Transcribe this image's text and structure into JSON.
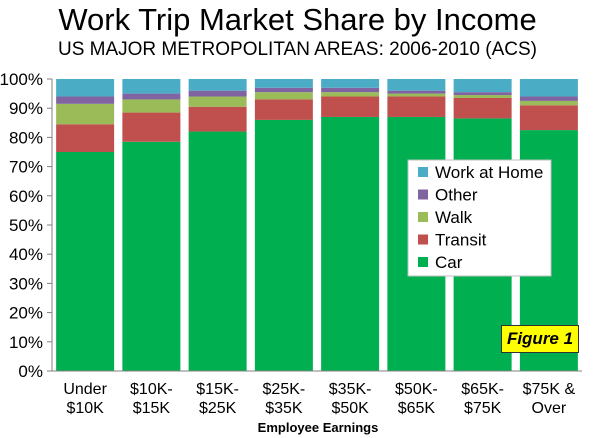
{
  "chart_data": {
    "type": "bar",
    "stacked": true,
    "title": "Work Trip Market Share by Income",
    "subtitle": "US MAJOR METROPOLITAN AREAS: 2006-2010 (ACS)",
    "xlabel": "Employee Earnings",
    "ylabel": "",
    "ylim": [
      0,
      100
    ],
    "yticks": [
      "0%",
      "10%",
      "20%",
      "30%",
      "40%",
      "50%",
      "60%",
      "70%",
      "80%",
      "90%",
      "100%"
    ],
    "categories": [
      [
        "Under",
        "$10K"
      ],
      [
        "$10K-",
        "$15K"
      ],
      [
        "$15K-",
        "$25K"
      ],
      [
        "$25K-",
        "$35K"
      ],
      [
        "$35K-",
        "$50K"
      ],
      [
        "$50K-",
        "$65K"
      ],
      [
        "$65K-",
        "$75K"
      ],
      [
        "$75K &",
        "Over"
      ]
    ],
    "series": [
      {
        "name": "Car",
        "color": "#00b050",
        "values": [
          75.0,
          78.5,
          82.0,
          86.0,
          87.0,
          87.0,
          86.5,
          82.5
        ]
      },
      {
        "name": "Transit",
        "color": "#c0504d",
        "values": [
          9.5,
          10.0,
          8.5,
          7.0,
          7.0,
          7.0,
          7.0,
          8.5
        ]
      },
      {
        "name": "Walk",
        "color": "#9bbb59",
        "values": [
          7.0,
          4.5,
          3.5,
          2.5,
          1.5,
          1.0,
          1.0,
          1.5
        ]
      },
      {
        "name": "Other",
        "color": "#8064a2",
        "values": [
          2.5,
          2.0,
          2.0,
          1.5,
          1.5,
          1.0,
          1.0,
          1.5
        ]
      },
      {
        "name": "Work at Home",
        "color": "#4bacc6",
        "values": [
          6.0,
          5.0,
          4.0,
          3.0,
          3.0,
          4.0,
          4.5,
          6.0
        ]
      }
    ],
    "legend_position": "right",
    "grid": false,
    "annotation": "Figure 1"
  }
}
